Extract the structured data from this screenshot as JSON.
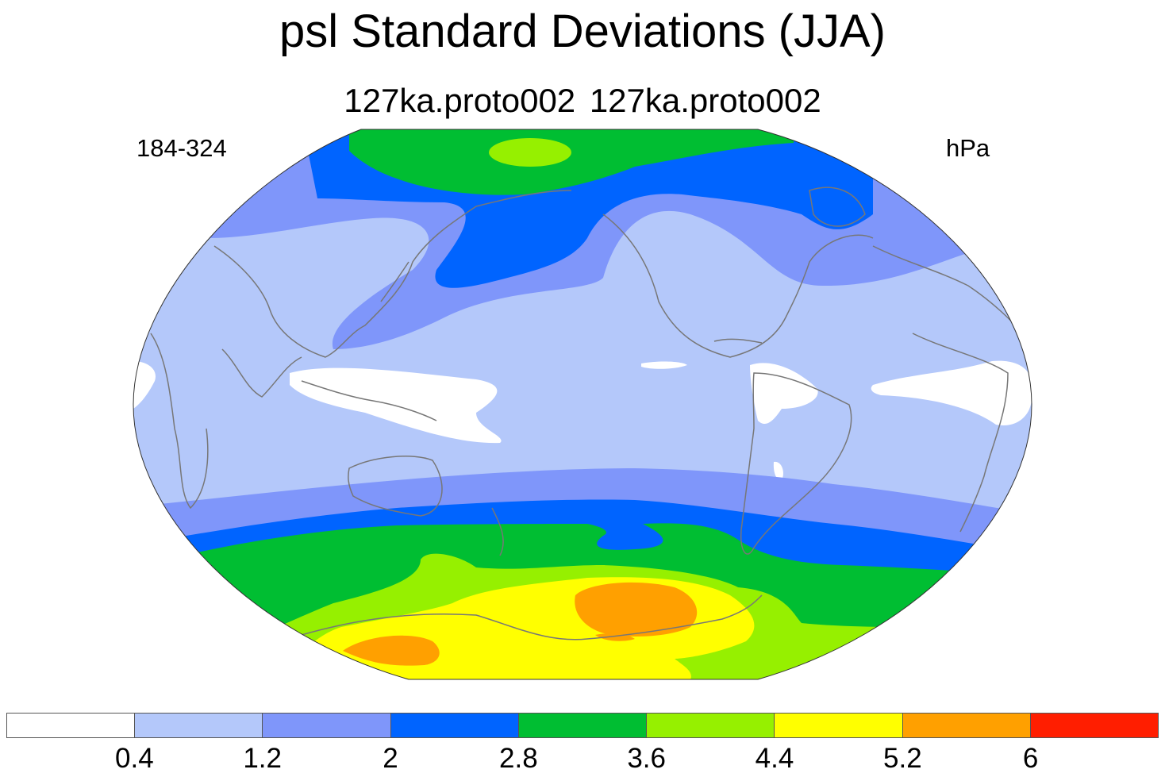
{
  "title": "psl Standard Deviations (JJA)",
  "subtitle": "127ka.proto002  127ka.proto002",
  "left_label": "184-324",
  "right_label": "hPa",
  "colorbar": {
    "colors": [
      "#ffffff",
      "#b4c8fa",
      "#7f96fa",
      "#0064ff",
      "#00be32",
      "#96f000",
      "#ffff00",
      "#ffa000",
      "#ff1e00"
    ],
    "tick_labels": [
      "0.4",
      "1.2",
      "2",
      "2.8",
      "3.6",
      "4.4",
      "5.2",
      "6"
    ]
  },
  "map": {
    "projection": "robinson",
    "field": "psl standard deviation",
    "units": "hPa"
  }
}
